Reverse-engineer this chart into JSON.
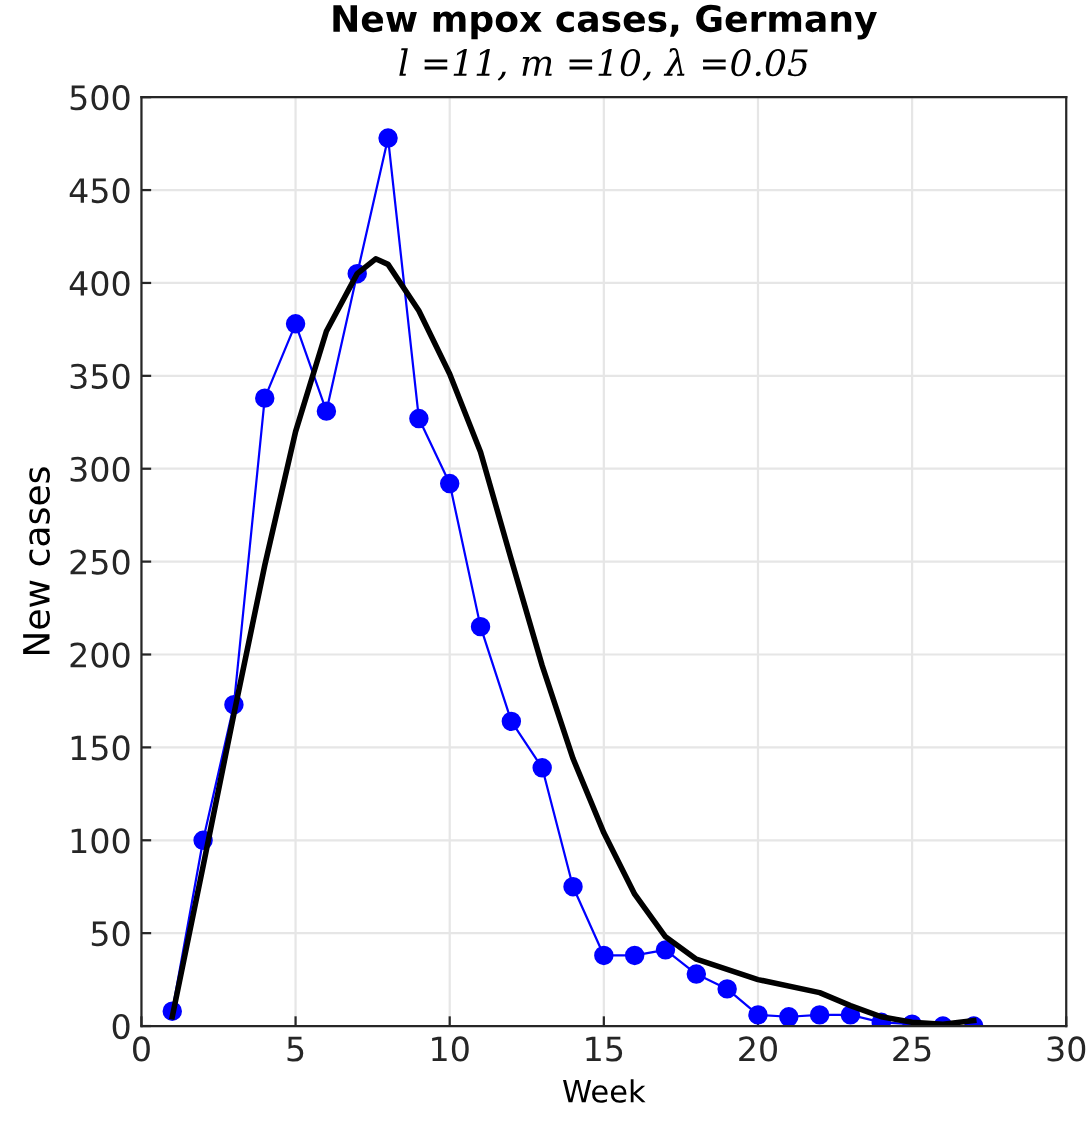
{
  "chart_data": {
    "type": "line",
    "title": "New mpox cases, Germany",
    "subtitle": "l =11, m =10, λ =0.05",
    "xlabel": "Week",
    "ylabel": "New cases",
    "xlim": [
      0,
      30
    ],
    "xticks": [
      0,
      5,
      10,
      15,
      20,
      25,
      30
    ],
    "ylim": [
      0,
      500
    ],
    "yticks": [
      0,
      50,
      100,
      150,
      200,
      250,
      300,
      350,
      400,
      450,
      500
    ],
    "grid": true,
    "series": [
      {
        "color": "#0000ff",
        "marker": "circle",
        "x": [
          1,
          2,
          3,
          4,
          5,
          6,
          7,
          8,
          9,
          10,
          11,
          12,
          13,
          14,
          15,
          16,
          17,
          18,
          19,
          20,
          21,
          22,
          23,
          24,
          25,
          26,
          27
        ],
        "values": [
          8,
          100,
          173,
          338,
          378,
          331,
          405,
          478,
          327,
          292,
          215,
          164,
          139,
          75,
          38,
          38,
          41,
          28,
          20,
          6,
          5,
          6,
          6,
          2,
          1,
          0,
          0
        ]
      },
      {
        "color": "#000000",
        "marker": "none",
        "x": [
          1,
          2,
          3,
          4,
          5,
          6,
          7,
          7.6,
          8,
          9,
          10,
          11,
          12,
          13,
          14,
          15,
          16,
          17,
          18,
          20,
          22,
          23,
          24,
          25,
          26,
          27
        ],
        "values": [
          5,
          86,
          168,
          248,
          320,
          374,
          405,
          413,
          410,
          385,
          351,
          309,
          251,
          194,
          144,
          104,
          71,
          48,
          36,
          25,
          18,
          11,
          5,
          2,
          1,
          3
        ]
      }
    ]
  }
}
